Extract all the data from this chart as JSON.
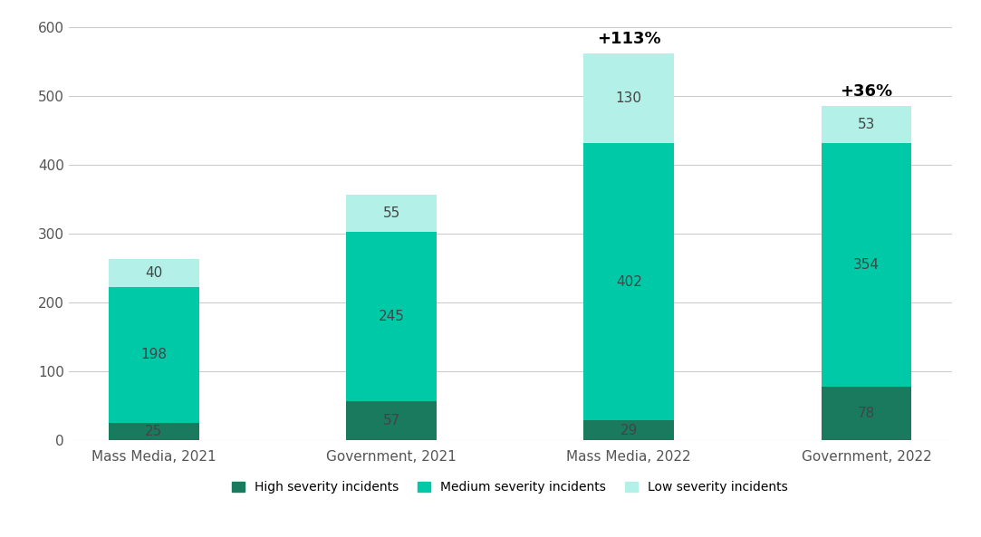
{
  "categories": [
    "Mass Media, 2021",
    "Government, 2021",
    "Mass Media, 2022",
    "Government, 2022"
  ],
  "high_severity": [
    25,
    57,
    29,
    78
  ],
  "medium_severity": [
    198,
    245,
    402,
    354
  ],
  "low_severity": [
    40,
    55,
    130,
    53
  ],
  "color_high": "#1a7a5e",
  "color_medium": "#00c9a7",
  "color_low": "#b2f0e8",
  "ylim": [
    0,
    600
  ],
  "yticks": [
    0,
    100,
    200,
    300,
    400,
    500,
    600
  ],
  "annotations": [
    {
      "text": "+113%",
      "bar_index": 2,
      "fontsize": 13,
      "fontweight": "bold"
    },
    {
      "text": "+36%",
      "bar_index": 3,
      "fontsize": 13,
      "fontweight": "bold"
    }
  ],
  "legend_labels": [
    "High severity incidents",
    "Medium severity incidents",
    "Low severity incidents"
  ],
  "bar_width": 0.38,
  "label_fontsize": 11,
  "tick_fontsize": 11,
  "label_color_dark": "#444444",
  "background_color": "#ffffff",
  "grid_color": "#cccccc"
}
